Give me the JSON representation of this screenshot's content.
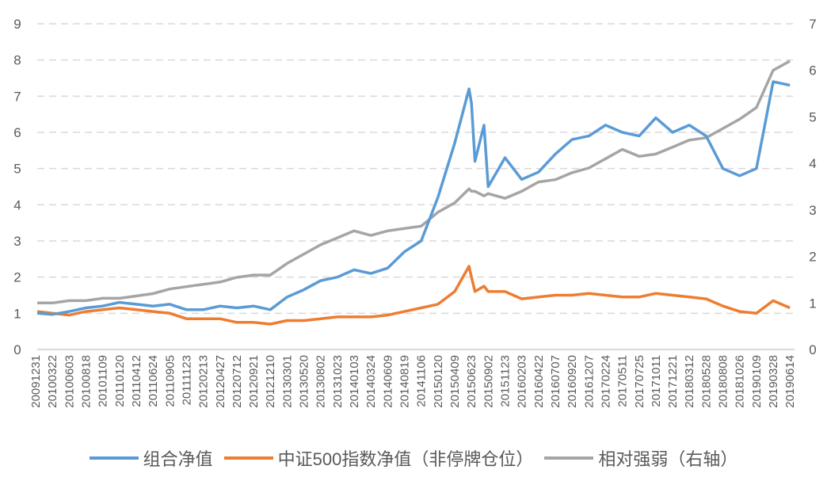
{
  "chart_data": {
    "type": "line",
    "title": "",
    "left_axis": {
      "ylim": [
        0,
        9
      ],
      "ticks": [
        "0",
        "1",
        "2",
        "3",
        "4",
        "5",
        "6",
        "7",
        "8",
        "9"
      ]
    },
    "right_axis": {
      "ylim": [
        0,
        7
      ],
      "ticks": [
        "0",
        "1",
        "2",
        "3",
        "4",
        "5",
        "6",
        "7"
      ]
    },
    "grid": "horizontal-dashed",
    "legend_position": "bottom",
    "x_tick_labels": [
      "20091231",
      "20100322",
      "20100603",
      "20100818",
      "20101109",
      "20110120",
      "20110412",
      "20110624",
      "20110905",
      "20111123",
      "20120213",
      "20120427",
      "20120712",
      "20120921",
      "20121210",
      "20130301",
      "20130520",
      "20130802",
      "20131023",
      "20140103",
      "20140324",
      "20140609",
      "20140819",
      "20141106",
      "20150120",
      "20150409",
      "20150623",
      "20150902",
      "20151123",
      "20160203",
      "20160422",
      "20160707",
      "20160920",
      "20161207",
      "20170224",
      "20170511",
      "20170725",
      "20171011",
      "20171221",
      "20180312",
      "20180528",
      "20180808",
      "20181026",
      "20190109",
      "20190328",
      "20190614"
    ],
    "x": [
      "20091231",
      "20100322",
      "20100603",
      "20100818",
      "20101109",
      "20110120",
      "20110412",
      "20110624",
      "20110905",
      "20111123",
      "20120213",
      "20120427",
      "20120712",
      "20120921",
      "20121210",
      "20130301",
      "20130520",
      "20130802",
      "20131023",
      "20140103",
      "20140324",
      "20140609",
      "20140819",
      "20141106",
      "20150120",
      "20150409",
      "20150612",
      "20150623",
      "20150708",
      "20150815",
      "20150902",
      "20151123",
      "20160203",
      "20160422",
      "20160707",
      "20160920",
      "20161207",
      "20170224",
      "20170511",
      "20170725",
      "20171011",
      "20171221",
      "20180312",
      "20180528",
      "20180808",
      "20181026",
      "20190109",
      "20190328",
      "20190614"
    ],
    "series": [
      {
        "name": "组合净值",
        "axis": "left",
        "color": "#5b9bd5",
        "values": [
          1.0,
          0.97,
          1.05,
          1.15,
          1.2,
          1.3,
          1.25,
          1.2,
          1.25,
          1.1,
          1.1,
          1.2,
          1.15,
          1.2,
          1.1,
          1.45,
          1.65,
          1.9,
          2.0,
          2.2,
          2.1,
          2.25,
          2.7,
          3.0,
          4.2,
          5.7,
          7.2,
          6.8,
          5.2,
          6.2,
          4.5,
          5.3,
          4.7,
          4.9,
          5.4,
          5.8,
          5.9,
          6.2,
          6.0,
          5.9,
          6.4,
          6.0,
          6.2,
          5.9,
          5.0,
          4.8,
          5.0,
          7.4,
          7.3
        ]
      },
      {
        "name": "中证500指数净值（非停牌仓位）",
        "axis": "left",
        "color": "#ed7d31",
        "values": [
          1.05,
          1.0,
          0.95,
          1.05,
          1.1,
          1.15,
          1.1,
          1.05,
          1.0,
          0.85,
          0.85,
          0.85,
          0.75,
          0.75,
          0.7,
          0.8,
          0.8,
          0.85,
          0.9,
          0.9,
          0.9,
          0.95,
          1.05,
          1.15,
          1.25,
          1.6,
          2.3,
          2.0,
          1.6,
          1.75,
          1.6,
          1.6,
          1.4,
          1.45,
          1.5,
          1.5,
          1.55,
          1.5,
          1.45,
          1.45,
          1.55,
          1.5,
          1.45,
          1.4,
          1.2,
          1.05,
          1.0,
          1.35,
          1.15
        ]
      },
      {
        "name": "相对强弱（右轴）",
        "axis": "right",
        "color": "#a5a5a5",
        "values": [
          1.0,
          1.0,
          1.05,
          1.05,
          1.1,
          1.1,
          1.15,
          1.2,
          1.3,
          1.35,
          1.4,
          1.45,
          1.55,
          1.6,
          1.6,
          1.85,
          2.05,
          2.25,
          2.4,
          2.55,
          2.45,
          2.55,
          2.6,
          2.65,
          2.95,
          3.15,
          3.45,
          3.4,
          3.4,
          3.3,
          3.35,
          3.25,
          3.4,
          3.6,
          3.65,
          3.8,
          3.9,
          4.1,
          4.3,
          4.15,
          4.2,
          4.35,
          4.5,
          4.55,
          4.75,
          4.95,
          5.2,
          6.0,
          6.2
        ]
      }
    ]
  }
}
